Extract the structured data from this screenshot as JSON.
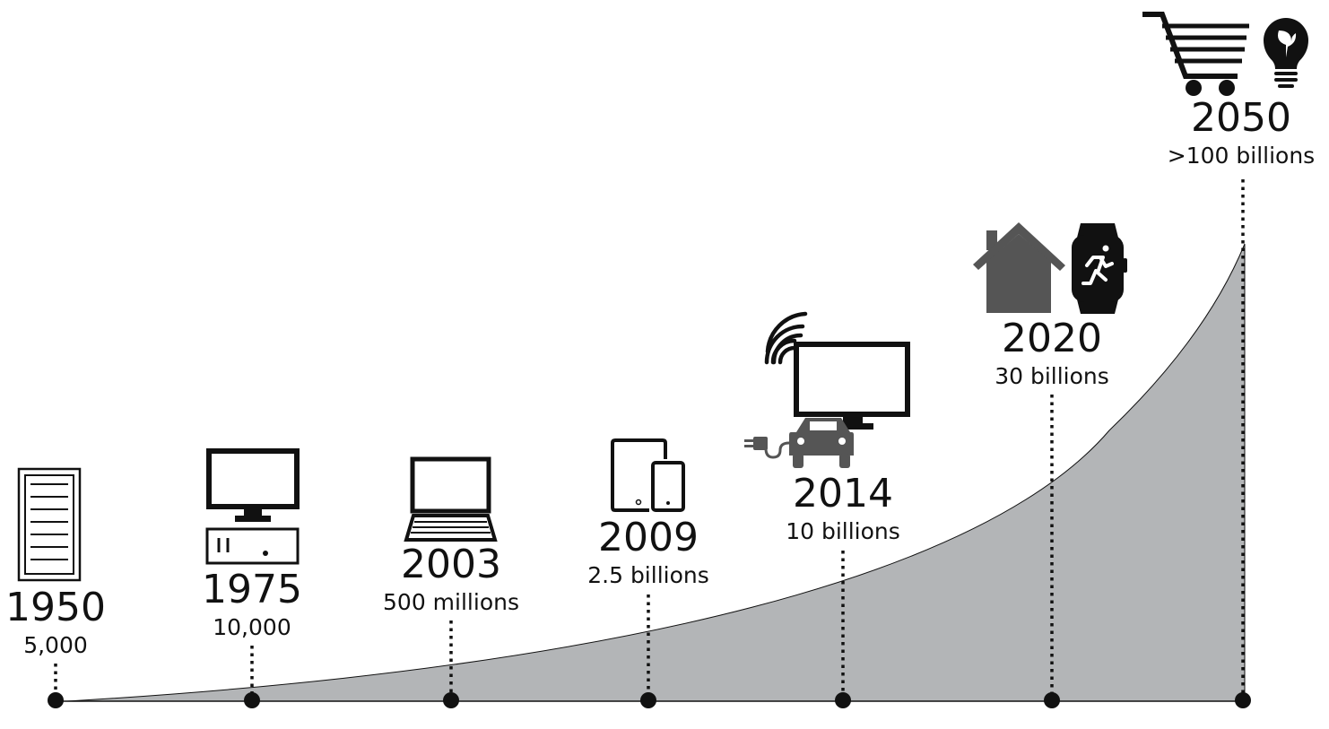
{
  "milestones": [
    {
      "year": "1950",
      "count": "5,000",
      "device_icons": [
        "mainframe-rack-icon"
      ]
    },
    {
      "year": "1975",
      "count": "10,000",
      "device_icons": [
        "desktop-computer-icon"
      ]
    },
    {
      "year": "2003",
      "count": "500 millions",
      "device_icons": [
        "laptop-icon"
      ]
    },
    {
      "year": "2009",
      "count": "2.5 billions",
      "device_icons": [
        "tablet-icon",
        "smartphone-icon"
      ]
    },
    {
      "year": "2014",
      "count": "10 billions",
      "device_icons": [
        "wifi-icon",
        "smart-tv-icon",
        "electric-car-icon"
      ]
    },
    {
      "year": "2020",
      "count": "30 billions",
      "device_icons": [
        "smart-home-icon",
        "smartwatch-icon"
      ]
    },
    {
      "year": "2050",
      "count": ">100 billions",
      "device_icons": [
        "shopping-cart-icon",
        "eco-lightbulb-icon"
      ]
    }
  ],
  "colors": {
    "curve_fill": "#b3b5b7",
    "ink": "#111111",
    "grey_icon": "#555555"
  }
}
